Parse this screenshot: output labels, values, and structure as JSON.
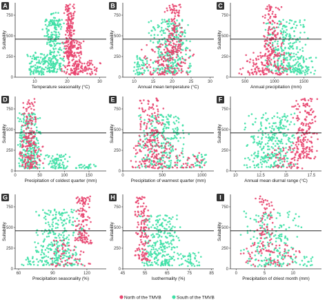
{
  "colors": {
    "north": "#e8456f",
    "south": "#3fe0a6",
    "threshold": "#000000",
    "label_box": "#333333"
  },
  "legend": {
    "position": "bottom-center",
    "entries": [
      {
        "key": "north",
        "label": "North of the TMVB"
      },
      {
        "key": "south",
        "label": "South of the TMVB"
      }
    ]
  },
  "chart_data": [
    {
      "id": "A",
      "type": "scatter",
      "xlabel": "Temperature seasonality (°C)",
      "ylabel": "Suitability",
      "xlim": [
        4,
        32
      ],
      "ylim": [
        0,
        900
      ],
      "xticks": [
        10,
        20,
        30
      ],
      "yticks": [
        0,
        250,
        500,
        750
      ],
      "threshold": 460,
      "series": [
        {
          "name": "North of the TMVB",
          "key": "north",
          "clusters": [
            {
              "x": [
                19,
                22.5
              ],
              "y": [
                250,
                880
              ],
              "n": 170
            },
            {
              "x": [
                18,
                26
              ],
              "y": [
                30,
                450
              ],
              "n": 130
            },
            {
              "x": [
                22,
                31
              ],
              "y": [
                30,
                200
              ],
              "n": 50
            }
          ]
        },
        {
          "name": "South of the TMVB",
          "key": "south",
          "clusters": [
            {
              "x": [
                12,
                19.5
              ],
              "y": [
                60,
                700
              ],
              "n": 240
            },
            {
              "x": [
                7,
                14
              ],
              "y": [
                30,
                300
              ],
              "n": 80
            },
            {
              "x": [
                14,
                18
              ],
              "y": [
                600,
                780
              ],
              "n": 30
            }
          ]
        }
      ]
    },
    {
      "id": "B",
      "type": "scatter",
      "xlabel": "Annual mean temperature (°C)",
      "ylabel": "Suitability",
      "xlim": [
        7,
        31
      ],
      "ylim": [
        0,
        900
      ],
      "xticks": [
        10,
        15,
        20,
        25,
        30
      ],
      "yticks": [
        0,
        250,
        500,
        750
      ],
      "threshold": 460,
      "series": [
        {
          "name": "North of the TMVB",
          "key": "north",
          "clusters": [
            {
              "x": [
                18,
                23
              ],
              "y": [
                300,
                880
              ],
              "n": 120
            },
            {
              "x": [
                11,
                26
              ],
              "y": [
                30,
                400
              ],
              "n": 150
            }
          ]
        },
        {
          "name": "South of the TMVB",
          "key": "south",
          "clusters": [
            {
              "x": [
                13,
                26
              ],
              "y": [
                50,
                700
              ],
              "n": 280
            },
            {
              "x": [
                9,
                14
              ],
              "y": [
                30,
                260
              ],
              "n": 50
            }
          ]
        }
      ]
    },
    {
      "id": "C",
      "type": "scatter",
      "xlabel": "Annual precipitation (mm)",
      "ylabel": "Suitability",
      "xlim": [
        250,
        1800
      ],
      "ylim": [
        0,
        900
      ],
      "xticks": [
        500,
        1000,
        1500
      ],
      "yticks": [
        0,
        250,
        500,
        750
      ],
      "threshold": 460,
      "series": [
        {
          "name": "North of the TMVB",
          "key": "north",
          "clusters": [
            {
              "x": [
                750,
                1150
              ],
              "y": [
                250,
                880
              ],
              "n": 130
            },
            {
              "x": [
                350,
                1300
              ],
              "y": [
                30,
                300
              ],
              "n": 130
            }
          ]
        },
        {
          "name": "South of the TMVB",
          "key": "south",
          "clusters": [
            {
              "x": [
                800,
                1600
              ],
              "y": [
                60,
                700
              ],
              "n": 260
            },
            {
              "x": [
                1200,
                1750
              ],
              "y": [
                30,
                250
              ],
              "n": 50
            }
          ]
        }
      ]
    },
    {
      "id": "D",
      "type": "scatter",
      "xlabel": "Precipitation of coldest quarter (mm)",
      "ylabel": "Suitability",
      "xlim": [
        0,
        185
      ],
      "ylim": [
        0,
        900
      ],
      "xticks": [
        0,
        50,
        100,
        150
      ],
      "yticks": [
        0,
        250,
        500,
        750
      ],
      "threshold": 460,
      "series": [
        {
          "name": "North of the TMVB",
          "key": "north",
          "clusters": [
            {
              "x": [
                12,
                45
              ],
              "y": [
                300,
                880
              ],
              "n": 110
            },
            {
              "x": [
                5,
                60
              ],
              "y": [
                30,
                300
              ],
              "n": 80
            }
          ]
        },
        {
          "name": "South of the TMVB",
          "key": "south",
          "clusters": [
            {
              "x": [
                3,
                55
              ],
              "y": [
                30,
                700
              ],
              "n": 260
            },
            {
              "x": [
                50,
                120
              ],
              "y": [
                30,
                200
              ],
              "n": 70
            },
            {
              "x": [
                110,
                180
              ],
              "y": [
                30,
                80
              ],
              "n": 25
            }
          ]
        }
      ]
    },
    {
      "id": "E",
      "type": "scatter",
      "xlabel": "Precipitation of warmest quarter (mm)",
      "ylabel": "Suitability",
      "xlim": [
        0,
        1150
      ],
      "ylim": [
        0,
        900
      ],
      "xticks": [
        0,
        500,
        1000
      ],
      "yticks": [
        0,
        250,
        500,
        750
      ],
      "threshold": 460,
      "series": [
        {
          "name": "North of the TMVB",
          "key": "north",
          "clusters": [
            {
              "x": [
                200,
                550
              ],
              "y": [
                300,
                880
              ],
              "n": 110
            },
            {
              "x": [
                50,
                700
              ],
              "y": [
                30,
                350
              ],
              "n": 120
            },
            {
              "x": [
                650,
                1050
              ],
              "y": [
                40,
                220
              ],
              "n": 30
            }
          ]
        },
        {
          "name": "South of the TMVB",
          "key": "south",
          "clusters": [
            {
              "x": [
                150,
                850
              ],
              "y": [
                40,
                680
              ],
              "n": 260
            },
            {
              "x": [
                850,
                1100
              ],
              "y": [
                40,
                200
              ],
              "n": 30
            }
          ]
        }
      ]
    },
    {
      "id": "F",
      "type": "scatter",
      "xlabel": "Annual mean diurnal range (°C)",
      "ylabel": "Suitability",
      "xlim": [
        9.5,
        18.5
      ],
      "ylim": [
        0,
        900
      ],
      "xticks": [
        10,
        12.5,
        15,
        17.5
      ],
      "yticks": [
        0,
        250,
        500,
        750
      ],
      "threshold": 460,
      "series": [
        {
          "name": "North of the TMVB",
          "key": "north",
          "clusters": [
            {
              "x": [
                15.5,
                18.2
              ],
              "y": [
                150,
                880
              ],
              "n": 180
            },
            {
              "x": [
                13,
                18
              ],
              "y": [
                30,
                300
              ],
              "n": 60
            }
          ]
        },
        {
          "name": "South of the TMVB",
          "key": "south",
          "clusters": [
            {
              "x": [
                10.5,
                16.5
              ],
              "y": [
                40,
                700
              ],
              "n": 300
            }
          ]
        }
      ]
    },
    {
      "id": "G",
      "type": "scatter",
      "xlabel": "Precipitation seasonality (%)",
      "ylabel": "Suitability",
      "xlim": [
        57,
        137
      ],
      "ylim": [
        0,
        900
      ],
      "xticks": [
        60,
        90,
        120
      ],
      "yticks": [
        0,
        250,
        500,
        750
      ],
      "threshold": 460,
      "series": [
        {
          "name": "North of the TMVB",
          "key": "north",
          "clusters": [
            {
              "x": [
                108,
                125
              ],
              "y": [
                300,
                880
              ],
              "n": 120
            },
            {
              "x": [
                85,
                125
              ],
              "y": [
                30,
                350
              ],
              "n": 60
            }
          ]
        },
        {
          "name": "South of the TMVB",
          "key": "south",
          "clusters": [
            {
              "x": [
                72,
                118
              ],
              "y": [
                40,
                720
              ],
              "n": 300
            },
            {
              "x": [
                60,
                80
              ],
              "y": [
                30,
                150
              ],
              "n": 20
            }
          ]
        }
      ]
    },
    {
      "id": "H",
      "type": "scatter",
      "xlabel": "Isothermality (%)",
      "ylabel": "Suitability",
      "xlim": [
        45,
        86
      ],
      "ylim": [
        0,
        900
      ],
      "xticks": [
        45,
        55,
        65,
        75,
        85
      ],
      "yticks": [
        0,
        250,
        500,
        750
      ],
      "threshold": 460,
      "series": [
        {
          "name": "North of the TMVB",
          "key": "north",
          "clusters": [
            {
              "x": [
                50,
                58
              ],
              "y": [
                100,
                880
              ],
              "n": 130
            }
          ]
        },
        {
          "name": "South of the TMVB",
          "key": "south",
          "clusters": [
            {
              "x": [
                52,
                72
              ],
              "y": [
                40,
                650
              ],
              "n": 260
            },
            {
              "x": [
                70,
                82
              ],
              "y": [
                30,
                200
              ],
              "n": 40
            }
          ]
        }
      ]
    },
    {
      "id": "I",
      "type": "scatter",
      "xlabel": "Precipitation of driest month (mm)",
      "ylabel": "Suitability",
      "xlim": [
        -1,
        15
      ],
      "ylim": [
        0,
        900
      ],
      "xticks": [
        0,
        5,
        10
      ],
      "yticks": [
        0,
        250,
        500,
        750
      ],
      "threshold": 460,
      "series": [
        {
          "name": "North of the TMVB",
          "key": "north",
          "clusters": [
            {
              "x": [
                3,
                7
              ],
              "y": [
                200,
                880
              ],
              "n": 80
            },
            {
              "x": [
                0,
                12
              ],
              "y": [
                30,
                300
              ],
              "n": 60
            }
          ]
        },
        {
          "name": "South of the TMVB",
          "key": "south",
          "clusters": [
            {
              "x": [
                0,
                12
              ],
              "y": [
                30,
                700
              ],
              "n": 200
            },
            {
              "x": [
                11,
                14
              ],
              "y": [
                30,
                150
              ],
              "n": 15
            }
          ]
        }
      ]
    }
  ]
}
